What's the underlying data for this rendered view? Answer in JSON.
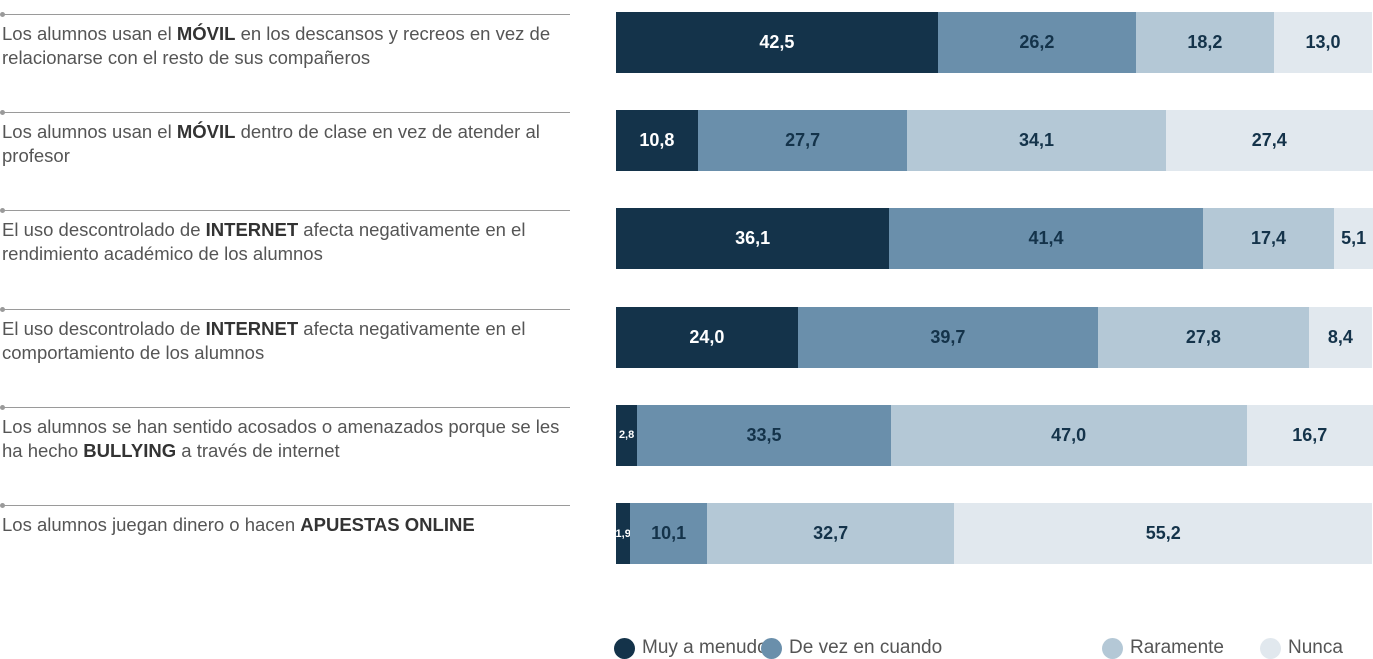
{
  "chart_data": {
    "type": "stacked-bar-horizontal",
    "categories": [
      "Los alumnos usan el MÓVIL en los descansos y recreos en vez de relacionarse con el resto de sus compañeros",
      "Los alumnos usan el MÓVIL dentro de clase en vez de atender al profesor",
      "El uso descontrolado de INTERNET afecta negativamente en el rendimiento académico de los alumnos",
      "El uso descontrolado de INTERNET afecta negativamente en el comportamiento de los alumnos",
      "Los alumnos se han sentido acosados o amenazados porque se les ha hecho BULLYING a través de internet",
      "Los alumnos juegan dinero o hacen APUESTAS ONLINE"
    ],
    "xlim": [
      0,
      100
    ],
    "series": [
      {
        "name": "Muy a menudo",
        "color": "#14334a",
        "values": [
          42.5,
          10.8,
          36.1,
          24.0,
          2.8,
          1.9
        ],
        "value_labels": [
          "42,5",
          "10,8",
          "36,1",
          "24,0",
          "2,8",
          "1,9"
        ]
      },
      {
        "name": "De vez en cuando",
        "color": "#6a8fab",
        "values": [
          26.2,
          27.7,
          41.4,
          39.7,
          33.5,
          10.1
        ],
        "value_labels": [
          "26,2",
          "27,7",
          "41,4",
          "39,7",
          "33,5",
          "10,1"
        ]
      },
      {
        "name": "Raramente",
        "color": "#b4c8d6",
        "values": [
          18.2,
          34.1,
          17.4,
          27.8,
          47.0,
          32.7
        ],
        "value_labels": [
          "18,2",
          "34,1",
          "17,4",
          "27,8",
          "47,0",
          "32,7"
        ]
      },
      {
        "name": "Nunca",
        "color": "#e1e8ee",
        "values": [
          13.0,
          27.4,
          5.1,
          8.4,
          16.7,
          55.2
        ],
        "value_labels": [
          "13,0",
          "27,4",
          "5,1",
          "8,4",
          "16,7",
          "55,2"
        ]
      }
    ],
    "legend": "bottom"
  }
}
